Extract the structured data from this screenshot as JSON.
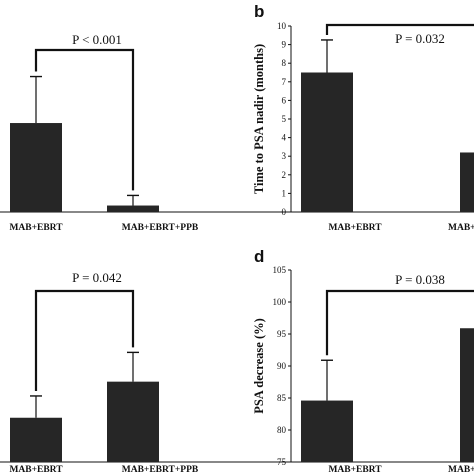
{
  "colors": {
    "bar": "#262626",
    "stroke": "#111111",
    "background": "#ffffff"
  },
  "chart_data": [
    {
      "type": "bar",
      "panel": "a",
      "panel_letter": "",
      "ylabel": "",
      "categories": [
        "MAB+EBRT",
        "MAB+EBRT+PPB"
      ],
      "values": [
        4.4,
        0.32
      ],
      "errors": [
        2.3,
        0.5
      ],
      "ylim": [
        0,
        9.2
      ],
      "yticks_shown": false,
      "pvalue": "P < 0.001"
    },
    {
      "type": "bar",
      "panel": "b",
      "panel_letter": "b",
      "ylabel": "Time to PSA nadir (months)",
      "categories": [
        "MAB+EBRT",
        "MAB+EBRT+PPB"
      ],
      "category_labels": [
        "MAB+EBRT",
        "MAB+"
      ],
      "values": [
        7.5,
        3.2
      ],
      "errors": [
        1.75,
        1.0
      ],
      "ylim": [
        0,
        10
      ],
      "yticks": [
        0,
        1,
        2,
        3,
        4,
        5,
        6,
        7,
        8,
        9,
        10
      ],
      "yticks_shown": true,
      "pvalue": "P = 0.032"
    },
    {
      "type": "bar",
      "panel": "c",
      "panel_letter": "",
      "ylabel": "",
      "categories": [
        "MAB+EBRT",
        "MAB+EBRT+PPB"
      ],
      "values": [
        81.5,
        86.8
      ],
      "errors": [
        3.2,
        4.3
      ],
      "ylim": [
        75,
        103.2
      ],
      "yticks_shown": false,
      "pvalue": "P = 0.042"
    },
    {
      "type": "bar",
      "panel": "d",
      "panel_letter": "d",
      "ylabel": "PSA decrease (%)",
      "categories": [
        "MAB+EBRT",
        "MAB+EBRT+PPB"
      ],
      "category_labels": [
        "MAB+EBRT",
        "MAB+"
      ],
      "values": [
        84.6,
        95.9
      ],
      "errors": [
        6.3,
        2.0
      ],
      "ylim": [
        75,
        105
      ],
      "yticks": [
        75,
        80,
        85,
        90,
        95,
        100,
        105
      ],
      "yticks_shown": true,
      "pvalue": "P = 0.038"
    }
  ]
}
